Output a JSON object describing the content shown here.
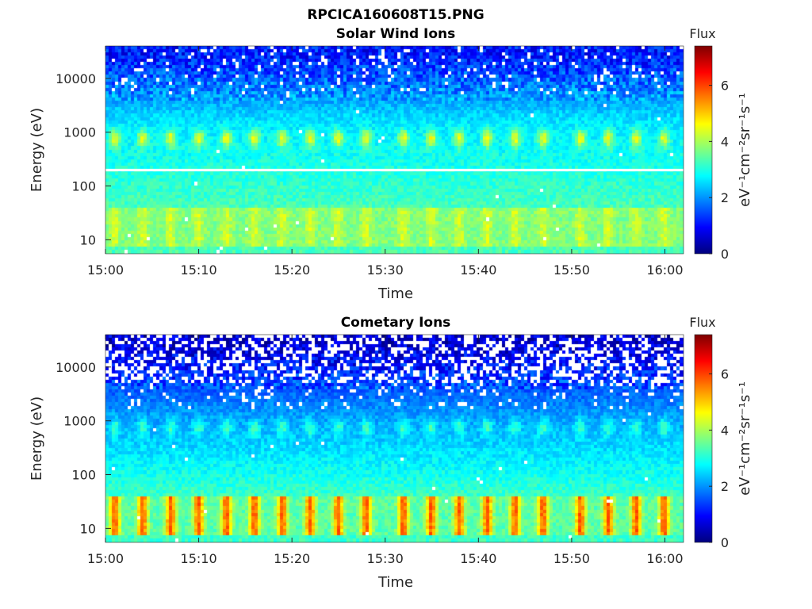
{
  "figure": {
    "title": "RPCICA160608T15.PNG"
  },
  "panels": [
    {
      "title": "Solar Wind Ions",
      "xlabel": "Time",
      "ylabel": "Energy (eV)",
      "colorbar_title": "Flux",
      "colorbar_label": "eV⁻¹cm⁻²sr⁻¹s⁻¹",
      "xticks": [
        "15:00",
        "15:10",
        "15:20",
        "15:30",
        "15:40",
        "15:50",
        "16:00"
      ],
      "yticks": [
        "10",
        "100",
        "1000",
        "10000"
      ],
      "cticks": [
        "0",
        "2",
        "4",
        "6"
      ]
    },
    {
      "title": "Cometary Ions",
      "xlabel": "Time",
      "ylabel": "Energy (eV)",
      "colorbar_title": "Flux",
      "colorbar_label": "eV⁻¹cm⁻²sr⁻¹s⁻¹",
      "xticks": [
        "15:00",
        "15:10",
        "15:20",
        "15:30",
        "15:40",
        "15:50",
        "16:00"
      ],
      "yticks": [
        "10",
        "100",
        "1000",
        "10000"
      ],
      "cticks": [
        "0",
        "2",
        "4",
        "6"
      ]
    }
  ],
  "chart_data": [
    {
      "type": "heatmap",
      "title": "Solar Wind Ions",
      "xlabel": "Time",
      "ylabel": "Energy (eV)",
      "x_range": [
        "15:00",
        "16:02"
      ],
      "y_scale": "log",
      "y_range": [
        5.5,
        40000
      ],
      "color_range": [
        0,
        7.4
      ],
      "colormap": "jet",
      "colorbar_title": "Flux",
      "background_level": {
        "low_energy": 3.3,
        "mid_energy": 2.6,
        "high_energy": 1.1
      },
      "beam_energy_eV": 750,
      "beam_peak_level": 4.4,
      "low_energy_band_eV": [
        8,
        30
      ],
      "low_energy_peak_level": 4.3,
      "calibration_line_eV": 200,
      "pulse_period_min": 3.2,
      "pulse_times": [
        "15:01",
        "15:04",
        "15:07",
        "15:10",
        "15:13",
        "15:16",
        "15:19",
        "15:22",
        "15:25",
        "15:28",
        "15:32",
        "15:35",
        "15:38",
        "15:41",
        "15:44",
        "15:47",
        "15:51",
        "15:54",
        "15:57",
        "16:00"
      ]
    },
    {
      "type": "heatmap",
      "title": "Cometary Ions",
      "xlabel": "Time",
      "ylabel": "Energy (eV)",
      "x_range": [
        "15:00",
        "16:02"
      ],
      "y_scale": "log",
      "y_range": [
        5.5,
        40000
      ],
      "color_range": [
        0,
        7.4
      ],
      "colormap": "jet",
      "colorbar_title": "Flux",
      "background_level": {
        "low_energy": 3.2,
        "mid_energy": 2.0,
        "high_energy": 0.6
      },
      "beam_energy_eV": 750,
      "beam_peak_level": 3.0,
      "low_energy_band_eV": [
        8,
        30
      ],
      "low_energy_peak_level": 5.8,
      "pulse_period_min": 3.2,
      "pulse_times": [
        "15:01",
        "15:04",
        "15:07",
        "15:10",
        "15:13",
        "15:16",
        "15:19",
        "15:22",
        "15:25",
        "15:28",
        "15:32",
        "15:35",
        "15:38",
        "15:41",
        "15:44",
        "15:47",
        "15:51",
        "15:54",
        "15:57",
        "16:00"
      ]
    }
  ]
}
